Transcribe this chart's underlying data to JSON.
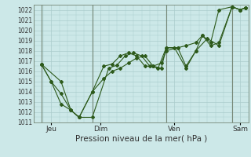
{
  "xlabel": "Pression niveau de la mer( hPa )",
  "bg_color": "#cce8e8",
  "grid_color": "#aacccc",
  "line_color": "#2d5a1b",
  "ylim": [
    1011,
    1022.5
  ],
  "yticks": [
    1011,
    1012,
    1013,
    1014,
    1015,
    1016,
    1017,
    1018,
    1019,
    1020,
    1021,
    1022
  ],
  "xlim": [
    -0.05,
    13.0
  ],
  "day_positions": [
    1.0,
    4.0,
    8.5,
    12.5
  ],
  "day_labels": [
    "Jeu",
    "Dim",
    "Ven",
    "Sam"
  ],
  "vlines": [
    0.4,
    3.5,
    8.0,
    12.0
  ],
  "series1_x": [
    0.4,
    1.6,
    2.2,
    2.7,
    3.5,
    4.5,
    5.0,
    5.5,
    6.0,
    6.5,
    7.0,
    7.5,
    8.0,
    8.5,
    9.2,
    9.8,
    10.5,
    11.2,
    12.0,
    12.5,
    12.8
  ],
  "series1_y": [
    1016.7,
    1015.0,
    1012.2,
    1011.5,
    1011.5,
    1016.3,
    1016.6,
    1017.5,
    1017.8,
    1017.5,
    1016.5,
    1016.3,
    1018.3,
    1018.3,
    1016.3,
    1018.0,
    1019.2,
    1018.5,
    1022.3,
    1022.0,
    1022.2
  ],
  "series2_x": [
    0.4,
    1.0,
    1.6,
    2.2,
    2.7,
    3.5,
    4.2,
    4.7,
    5.2,
    5.7,
    6.2,
    6.7,
    7.2,
    7.7,
    8.0,
    8.7,
    9.2,
    9.8,
    10.2,
    10.7,
    11.2,
    12.0,
    12.5,
    12.8
  ],
  "series2_y": [
    1016.7,
    1015.0,
    1012.8,
    1012.2,
    1011.5,
    1014.0,
    1016.5,
    1016.7,
    1017.5,
    1017.8,
    1017.5,
    1016.5,
    1016.5,
    1016.3,
    1018.3,
    1018.3,
    1016.5,
    1018.0,
    1019.5,
    1018.5,
    1018.8,
    1022.3,
    1022.0,
    1022.2
  ],
  "series3_x": [
    0.4,
    1.0,
    1.6,
    2.2,
    2.7,
    3.5,
    4.2,
    4.7,
    5.2,
    5.7,
    6.2,
    6.7,
    7.2,
    7.7,
    8.0,
    8.7,
    9.2,
    9.8,
    10.2,
    10.7,
    11.2,
    12.0,
    12.5,
    12.8
  ],
  "series3_y": [
    1016.7,
    1015.0,
    1013.8,
    1012.2,
    1011.5,
    1014.0,
    1015.3,
    1016.0,
    1016.3,
    1016.8,
    1017.3,
    1017.5,
    1016.5,
    1016.8,
    1018.0,
    1018.3,
    1018.5,
    1018.8,
    1019.5,
    1018.8,
    1022.0,
    1022.3,
    1022.0,
    1022.2
  ]
}
